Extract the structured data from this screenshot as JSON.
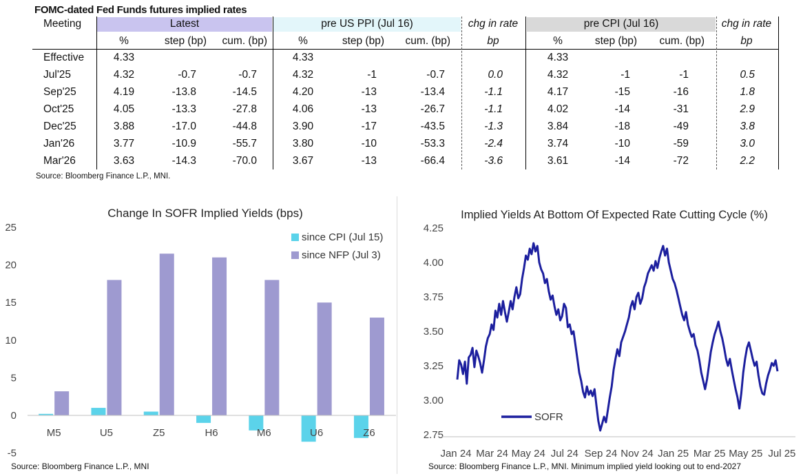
{
  "table": {
    "title": "FOMC-dated Fed Funds futures implied rates",
    "groups": {
      "meeting": "Meeting",
      "latest": "Latest",
      "pre_ppi": "pre US PPI (Jul 16)",
      "chg_ppi": "chg in rate",
      "pre_cpi": "pre CPI (Jul 16)",
      "chg_cpi": "chg in rate"
    },
    "subheaders": {
      "pct": "%",
      "step": "step (bp)",
      "cum": "cum. (bp)",
      "bp": "bp"
    },
    "rows": [
      {
        "meeting": "Effective",
        "l_pct": "4.33",
        "l_step": "",
        "l_cum": "",
        "p_pct": "4.33",
        "p_step": "",
        "p_cum": "",
        "p_chg": "",
        "c_pct": "4.33",
        "c_step": "",
        "c_cum": "",
        "c_chg": ""
      },
      {
        "meeting": "Jul'25",
        "l_pct": "4.32",
        "l_step": "-0.7",
        "l_cum": "-0.7",
        "p_pct": "4.32",
        "p_step": "-1",
        "p_cum": "-0.7",
        "p_chg": "0.0",
        "c_pct": "4.32",
        "c_step": "-1",
        "c_cum": "-1",
        "c_chg": "0.5"
      },
      {
        "meeting": "Sep'25",
        "l_pct": "4.19",
        "l_step": "-13.8",
        "l_cum": "-14.5",
        "p_pct": "4.20",
        "p_step": "-13",
        "p_cum": "-13.4",
        "p_chg": "-1.1",
        "c_pct": "4.17",
        "c_step": "-15",
        "c_cum": "-16",
        "c_chg": "1.8"
      },
      {
        "meeting": "Oct'25",
        "l_pct": "4.05",
        "l_step": "-13.3",
        "l_cum": "-27.8",
        "p_pct": "4.06",
        "p_step": "-13",
        "p_cum": "-26.7",
        "p_chg": "-1.1",
        "c_pct": "4.02",
        "c_step": "-14",
        "c_cum": "-31",
        "c_chg": "2.9"
      },
      {
        "meeting": "Dec'25",
        "l_pct": "3.88",
        "l_step": "-17.0",
        "l_cum": "-44.8",
        "p_pct": "3.90",
        "p_step": "-17",
        "p_cum": "-43.5",
        "p_chg": "-1.3",
        "c_pct": "3.84",
        "c_step": "-18",
        "c_cum": "-49",
        "c_chg": "3.8"
      },
      {
        "meeting": "Jan'26",
        "l_pct": "3.77",
        "l_step": "-10.9",
        "l_cum": "-55.7",
        "p_pct": "3.80",
        "p_step": "-10",
        "p_cum": "-53.3",
        "p_chg": "-2.4",
        "c_pct": "3.74",
        "c_step": "-10",
        "c_cum": "-59",
        "c_chg": "3.0"
      },
      {
        "meeting": "Mar'26",
        "l_pct": "3.63",
        "l_step": "-14.3",
        "l_cum": "-70.0",
        "p_pct": "3.67",
        "p_step": "-13",
        "p_cum": "-66.4",
        "p_chg": "-3.6",
        "c_pct": "3.61",
        "c_step": "-14",
        "c_cum": "-72",
        "c_chg": "2.2"
      }
    ],
    "source": "Source: Bloomberg Finance L.P., MNI.",
    "colors": {
      "latest_band": "#c9c4ef",
      "ppi_band": "#e3f6fa",
      "cpi_band": "#d9d9d9"
    }
  },
  "chart_data": [
    {
      "type": "bar",
      "title": "Change In SOFR Implied Yields (bps)",
      "categories": [
        "M5",
        "U5",
        "Z5",
        "H6",
        "M6",
        "U6",
        "Z6"
      ],
      "series": [
        {
          "name": "since CPI (Jul 15)",
          "color": "#5bd3ea",
          "values": [
            0.2,
            1.0,
            0.5,
            -1.0,
            -2.0,
            -3.5,
            -3.0
          ]
        },
        {
          "name": "since NFP (Jul 3)",
          "color": "#9e9ad0",
          "values": [
            3.2,
            18,
            21.5,
            21,
            18,
            15,
            13
          ]
        }
      ],
      "ylim": [
        -5,
        25
      ],
      "yticks": [
        "-5",
        "0",
        "5",
        "10",
        "15",
        "20",
        "25"
      ],
      "legend": "top-right",
      "source": "Source: Bloomberg Finance L.P., MNI"
    },
    {
      "type": "line",
      "title": "Implied Yields At Bottom Of Expected Rate Cutting Cycle (%)",
      "series": [
        {
          "name": "SOFR",
          "color": "#1c1f9e",
          "x_range": [
            "Jan 24",
            "Jul 25"
          ],
          "values": [
            3.15,
            3.29,
            3.26,
            3.19,
            3.28,
            3.12,
            3.31,
            3.33,
            3.38,
            3.24,
            3.36,
            3.32,
            3.27,
            3.2,
            3.29,
            3.39,
            3.45,
            3.48,
            3.55,
            3.51,
            3.65,
            3.6,
            3.7,
            3.62,
            3.72,
            3.64,
            3.57,
            3.64,
            3.72,
            3.66,
            3.75,
            3.82,
            3.74,
            3.77,
            3.88,
            3.96,
            4.05,
            4.02,
            4.1,
            4.06,
            4.14,
            4.08,
            4.12,
            4.0,
            3.95,
            3.92,
            3.85,
            3.88,
            3.79,
            3.73,
            3.76,
            3.68,
            3.62,
            3.66,
            3.58,
            3.61,
            3.7,
            3.67,
            3.53,
            3.55,
            3.48,
            3.5,
            3.4,
            3.3,
            3.2,
            3.14,
            3.06,
            3.02,
            3.1,
            3.04,
            3.07,
            3.03,
            3.08,
            2.96,
            2.85,
            2.78,
            2.83,
            2.88,
            2.84,
            2.93,
            3.02,
            3.1,
            3.22,
            3.3,
            3.37,
            3.32,
            3.42,
            3.46,
            3.5,
            3.55,
            3.6,
            3.68,
            3.72,
            3.66,
            3.75,
            3.78,
            3.7,
            3.74,
            3.82,
            3.86,
            3.92,
            3.95,
            3.98,
            3.94,
            4.01,
            3.96,
            4.03,
            4.08,
            4.12,
            4.05,
            4.1,
            4.0,
            3.94,
            3.88,
            3.85,
            3.8,
            3.74,
            3.68,
            3.62,
            3.58,
            3.64,
            3.55,
            3.5,
            3.46,
            3.48,
            3.4,
            3.36,
            3.29,
            3.2,
            3.14,
            3.08,
            3.15,
            3.25,
            3.35,
            3.42,
            3.48,
            3.52,
            3.57,
            3.5,
            3.45,
            3.38,
            3.3,
            3.25,
            3.3,
            3.22,
            3.15,
            3.08,
            3.02,
            2.94,
            3.05,
            3.2,
            3.3,
            3.38,
            3.42,
            3.36,
            3.3,
            3.25,
            3.28,
            3.18,
            3.1,
            3.05,
            3.04,
            3.12,
            3.18,
            3.22,
            3.27,
            3.25,
            3.29,
            3.21
          ]
        }
      ],
      "ylim": [
        2.75,
        4.25
      ],
      "yticks": [
        "2.75",
        "3.00",
        "3.25",
        "3.50",
        "3.75",
        "4.00",
        "4.25"
      ],
      "xticks": [
        "Jan 24",
        "Mar 24",
        "May 24",
        "Jul 24",
        "Sep 24",
        "Nov 24",
        "Jan 25",
        "Mar 25",
        "May 25",
        "Jul 25"
      ],
      "legend": "bottom-left",
      "source": "Source: Bloomberg Finance L.P., MNI. Minimum implied yield looking out to end-2027"
    }
  ]
}
